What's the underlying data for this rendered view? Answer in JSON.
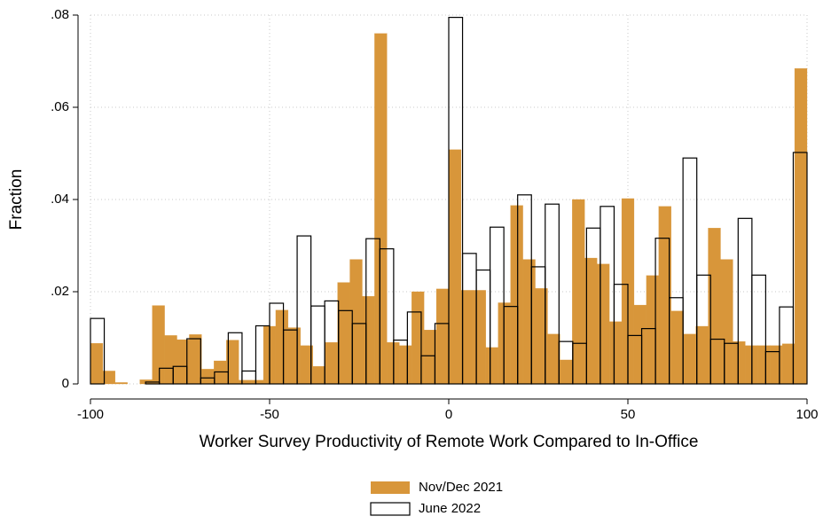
{
  "chart_data": {
    "type": "histogram",
    "x_label": "Worker Survey Productivity of Remote Work Compared to In-Office",
    "y_label": "Fraction",
    "xlim": [
      -100,
      100
    ],
    "ylim": [
      0,
      0.08
    ],
    "xticks": [
      -100,
      -50,
      0,
      50,
      100
    ],
    "yticks": [
      0,
      {
        "value": 0.02,
        "label": ".02"
      },
      {
        "value": 0.04,
        "label": ".04"
      },
      {
        "value": 0.06,
        "label": ".06"
      },
      {
        "value": 0.08,
        "label": ".08"
      }
    ],
    "grid": true,
    "legend": "bottom",
    "series": [
      {
        "name": "Nov/Dec 2021",
        "color": "#d8963a",
        "fill": true,
        "bins": [
          -100,
          -96.55,
          -93.1,
          -89.66,
          -86.21,
          -82.76,
          -79.31,
          -75.86,
          -72.41,
          -68.97,
          -65.52,
          -62.07,
          -58.62,
          -55.17,
          -51.72,
          -48.28,
          -44.83,
          -41.38,
          -37.93,
          -34.48,
          -31.03,
          -27.59,
          -24.14,
          -20.69,
          -17.24,
          -13.79,
          -10.34,
          -6.9,
          -3.45,
          0,
          3.45,
          6.9,
          10.34,
          13.79,
          17.24,
          20.69,
          24.14,
          27.59,
          31.03,
          34.48,
          37.93,
          41.38,
          44.83,
          48.28,
          51.72,
          55.17,
          58.62,
          62.07,
          65.52,
          68.97,
          72.41,
          75.86,
          79.31,
          82.76,
          86.21,
          89.66,
          93.1,
          96.55,
          100
        ],
        "values": [
          0.0088,
          0.0028,
          0.0003,
          0,
          0.0009,
          0.017,
          0.0105,
          0.0096,
          0.0107,
          0.0032,
          0.005,
          0.0095,
          0.0008,
          0.0008,
          0.0125,
          0.016,
          0.0122,
          0.0083,
          0.0038,
          0.009,
          0.022,
          0.027,
          0.019,
          0.076,
          0.009,
          0.0083,
          0.02,
          0.0117,
          0.0206,
          0.0508,
          0.0203,
          0.0203,
          0.0079,
          0.0176,
          0.0387,
          0.027,
          0.0207,
          0.0108,
          0.0052,
          0.04,
          0.0273,
          0.026,
          0.0135,
          0.0402,
          0.0171,
          0.0235,
          0.0385,
          0.0158,
          0.0108,
          0.0125,
          0.0338,
          0.027,
          0.0092,
          0.0083,
          0.0083,
          0.0083,
          0.0087,
          0.0684
        ]
      },
      {
        "name": "June 2022",
        "color": "#000000",
        "fill": false,
        "bins": [
          -100,
          -96.15,
          -92.31,
          -88.46,
          -84.62,
          -80.77,
          -76.92,
          -73.08,
          -69.23,
          -65.38,
          -61.54,
          -57.69,
          -53.85,
          -50,
          -46.15,
          -42.31,
          -38.46,
          -34.62,
          -30.77,
          -26.92,
          -23.08,
          -19.23,
          -15.38,
          -11.54,
          -7.69,
          -3.85,
          0,
          3.85,
          7.69,
          11.54,
          15.38,
          19.23,
          23.08,
          26.92,
          30.77,
          34.62,
          38.46,
          42.31,
          46.15,
          50,
          53.85,
          57.69,
          61.54,
          65.38,
          69.23,
          73.08,
          76.92,
          80.77,
          84.62,
          88.46,
          92.31,
          96.15,
          100
        ],
        "values": [
          0.0142,
          0,
          0,
          0,
          0.0004,
          0.0034,
          0.0038,
          0.0098,
          0.0013,
          0.0026,
          0.0111,
          0.0028,
          0.0126,
          0.0175,
          0.0117,
          0.0321,
          0.0169,
          0.018,
          0.0159,
          0.0131,
          0.0315,
          0.0293,
          0.0095,
          0.0156,
          0.0061,
          0.0131,
          0.0795,
          0.0283,
          0.0247,
          0.034,
          0.0168,
          0.041,
          0.0254,
          0.039,
          0.0092,
          0.0088,
          0.0338,
          0.0385,
          0.0216,
          0.0105,
          0.012,
          0.0316,
          0.0187,
          0.049,
          0.0236,
          0.0097,
          0.0088,
          0.0359,
          0.0236,
          0.007,
          0.0167,
          0.0502
        ]
      }
    ]
  }
}
